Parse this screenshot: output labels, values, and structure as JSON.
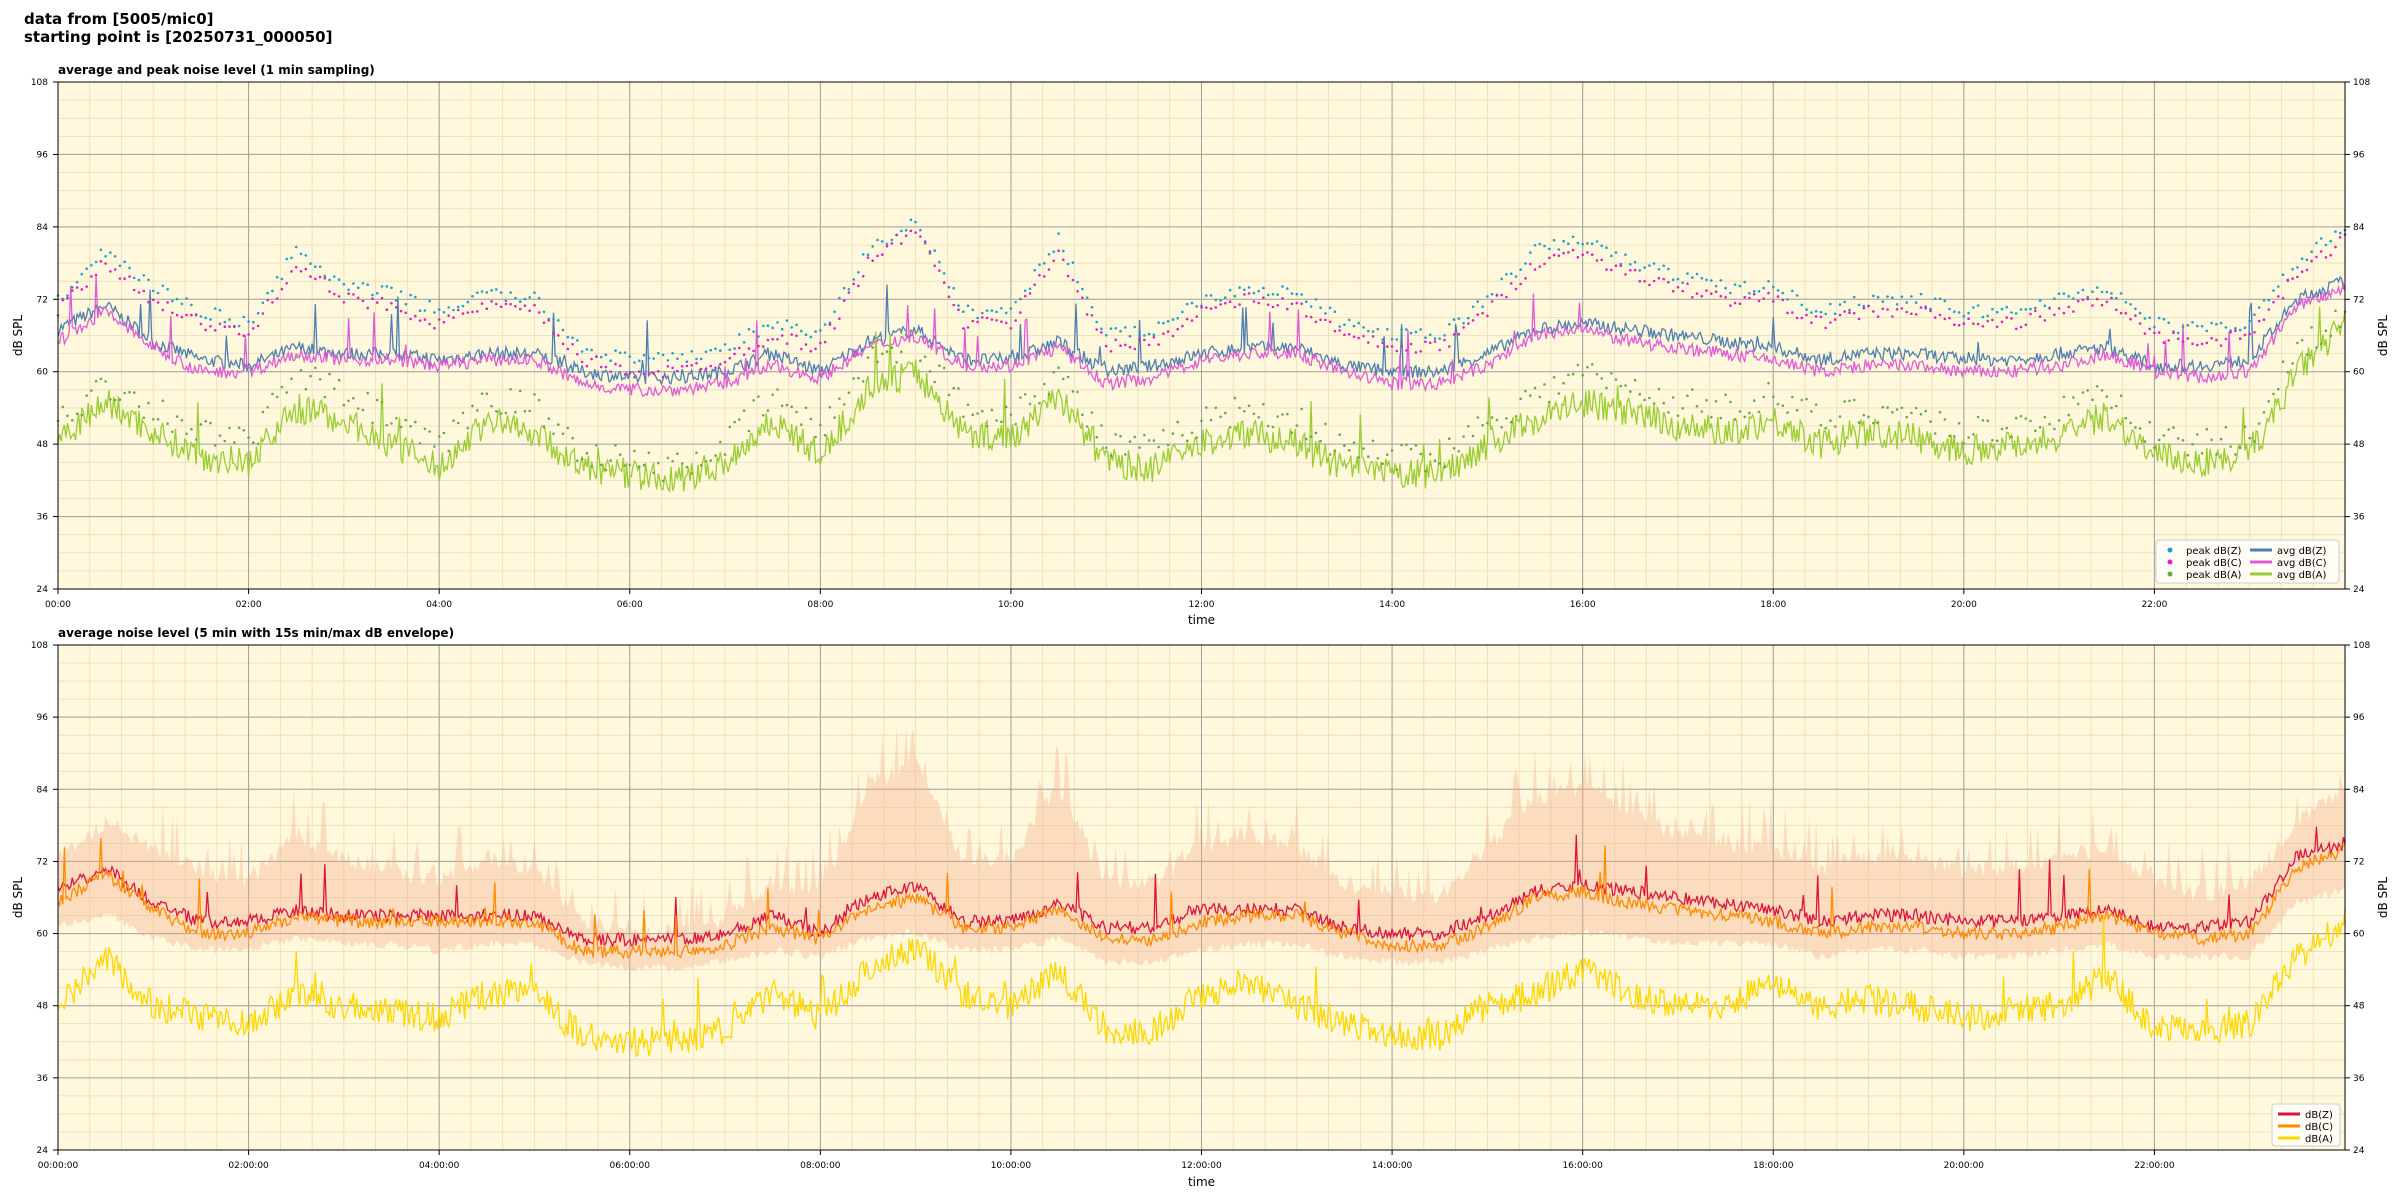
{
  "header": {
    "line1": "data from [5005/mic0]",
    "line2": "starting point is [20250731_000050]"
  },
  "chart_data": [
    {
      "type": "line",
      "title": "average and peak noise level (1 min sampling)",
      "xlabel": "time",
      "ylabel": "dB SPL",
      "ylim": [
        24,
        108
      ],
      "yticks": [
        24,
        36,
        48,
        60,
        72,
        84,
        96,
        108
      ],
      "xlim_hours": [
        0,
        24
      ],
      "xtick_labels": [
        "00:00",
        "02:00",
        "04:00",
        "06:00",
        "08:00",
        "10:00",
        "12:00",
        "14:00",
        "16:00",
        "18:00",
        "20:00",
        "22:00"
      ],
      "grid": true,
      "legend_position": "bottom-right",
      "x_hours": [
        0,
        0.5,
        1,
        1.5,
        2,
        2.5,
        3,
        3.5,
        4,
        4.5,
        5,
        5.5,
        6,
        6.5,
        7,
        7.5,
        8,
        8.5,
        9,
        9.5,
        10,
        10.5,
        11,
        11.5,
        12,
        12.5,
        13,
        13.5,
        14,
        14.5,
        15,
        15.5,
        16,
        16.5,
        17,
        17.5,
        18,
        18.5,
        19,
        19.5,
        20,
        20.5,
        21,
        21.5,
        22,
        22.5,
        23,
        23.5,
        24
      ],
      "series": [
        {
          "name": "avg dB(Z)",
          "style": "line",
          "color": "#4f7fb0",
          "values": [
            67,
            71,
            65,
            62,
            61,
            64,
            63,
            63,
            62,
            63,
            63,
            60,
            59,
            59,
            60,
            63,
            60,
            65,
            67,
            62,
            62,
            65,
            60,
            61,
            63,
            64,
            64,
            61,
            60,
            60,
            63,
            67,
            68,
            67,
            66,
            65,
            64,
            62,
            63,
            63,
            62,
            62,
            63,
            64,
            61,
            61,
            62,
            72,
            75
          ]
        },
        {
          "name": "avg dB(C)",
          "style": "line",
          "color": "#e05ad8",
          "values": [
            65,
            70,
            64,
            60,
            60,
            63,
            62,
            62,
            61,
            62,
            62,
            58,
            57,
            57,
            58,
            61,
            59,
            64,
            66,
            61,
            61,
            64,
            58,
            59,
            62,
            63,
            63,
            60,
            58,
            58,
            61,
            66,
            67,
            65,
            64,
            63,
            62,
            60,
            61,
            61,
            60,
            60,
            61,
            63,
            60,
            59,
            60,
            71,
            74
          ]
        },
        {
          "name": "avg dB(A)",
          "style": "line",
          "color": "#9acd32",
          "values": [
            49,
            55,
            50,
            46,
            45,
            54,
            52,
            48,
            44,
            52,
            50,
            44,
            43,
            42,
            45,
            52,
            46,
            57,
            60,
            50,
            49,
            56,
            45,
            44,
            48,
            50,
            48,
            44,
            43,
            43,
            48,
            52,
            55,
            53,
            51,
            50,
            52,
            48,
            50,
            49,
            47,
            48,
            49,
            53,
            46,
            45,
            46,
            60,
            68
          ]
        },
        {
          "name": "peak dB(Z)",
          "style": "dots",
          "color": "#1f9fd0",
          "values": [
            72,
            80,
            74,
            70,
            68,
            80,
            74,
            73,
            70,
            73,
            72,
            64,
            62,
            62,
            64,
            68,
            66,
            80,
            85,
            70,
            70,
            82,
            66,
            67,
            72,
            74,
            73,
            68,
            66,
            66,
            72,
            80,
            82,
            78,
            76,
            74,
            74,
            70,
            72,
            72,
            70,
            70,
            72,
            74,
            68,
            67,
            68,
            78,
            84
          ]
        },
        {
          "name": "peak dB(C)",
          "style": "dots",
          "color": "#e020c0",
          "values": [
            70,
            78,
            72,
            68,
            66,
            78,
            72,
            71,
            68,
            71,
            70,
            62,
            60,
            60,
            62,
            66,
            64,
            78,
            84,
            68,
            68,
            80,
            64,
            65,
            70,
            72,
            71,
            66,
            64,
            64,
            70,
            78,
            80,
            76,
            74,
            72,
            72,
            68,
            70,
            70,
            68,
            68,
            70,
            72,
            66,
            65,
            66,
            76,
            82
          ]
        },
        {
          "name": "peak dB(A)",
          "style": "dots",
          "color": "#6aa84f",
          "values": [
            52,
            58,
            54,
            50,
            48,
            60,
            56,
            52,
            47,
            56,
            54,
            47,
            45,
            44,
            48,
            56,
            50,
            62,
            65,
            54,
            53,
            60,
            48,
            47,
            52,
            54,
            52,
            47,
            46,
            46,
            52,
            56,
            60,
            57,
            55,
            54,
            56,
            52,
            54,
            53,
            50,
            51,
            53,
            57,
            49,
            48,
            49,
            64,
            70
          ]
        }
      ]
    },
    {
      "type": "line",
      "title": "average noise level (5 min with 15s min/max dB envelope)",
      "xlabel": "time",
      "ylabel": "dB SPL",
      "ylim": [
        24,
        108
      ],
      "yticks": [
        24,
        36,
        48,
        60,
        72,
        84,
        96,
        108
      ],
      "xlim_hours": [
        0,
        24
      ],
      "xtick_labels": [
        "00:00:00",
        "02:00:00",
        "04:00:00",
        "06:00:00",
        "08:00:00",
        "10:00:00",
        "12:00:00",
        "14:00:00",
        "16:00:00",
        "18:00:00",
        "20:00:00",
        "22:00:00"
      ],
      "grid": true,
      "legend_position": "bottom-right",
      "x_hours": [
        0,
        0.5,
        1,
        1.5,
        2,
        2.5,
        3,
        3.5,
        4,
        4.5,
        5,
        5.5,
        6,
        6.5,
        7,
        7.5,
        8,
        8.5,
        9,
        9.5,
        10,
        10.5,
        11,
        11.5,
        12,
        12.5,
        13,
        13.5,
        14,
        14.5,
        15,
        15.5,
        16,
        16.5,
        17,
        17.5,
        18,
        18.5,
        19,
        19.5,
        20,
        20.5,
        21,
        21.5,
        22,
        22.5,
        23,
        23.5,
        24
      ],
      "envelope_max": [
        74,
        80,
        76,
        72,
        70,
        78,
        74,
        72,
        70,
        74,
        72,
        64,
        62,
        62,
        64,
        70,
        68,
        86,
        90,
        74,
        74,
        86,
        70,
        70,
        76,
        78,
        76,
        70,
        68,
        68,
        76,
        84,
        86,
        82,
        78,
        76,
        76,
        72,
        74,
        74,
        72,
        72,
        74,
        76,
        70,
        68,
        70,
        80,
        86
      ],
      "envelope_min": [
        62,
        64,
        60,
        58,
        58,
        60,
        59,
        59,
        58,
        59,
        59,
        56,
        55,
        55,
        56,
        58,
        57,
        60,
        61,
        58,
        58,
        60,
        56,
        56,
        58,
        59,
        59,
        57,
        56,
        56,
        58,
        60,
        61,
        60,
        59,
        59,
        59,
        57,
        58,
        58,
        57,
        57,
        58,
        59,
        57,
        57,
        57,
        66,
        68
      ],
      "series": [
        {
          "name": "dB(Z)",
          "color": "#dc143c",
          "values": [
            67,
            71,
            65,
            62,
            62,
            64,
            63,
            63,
            63,
            63,
            63,
            59,
            59,
            59,
            60,
            63,
            60,
            66,
            68,
            62,
            62,
            65,
            61,
            61,
            64,
            64,
            64,
            61,
            60,
            60,
            63,
            67,
            68,
            67,
            66,
            65,
            64,
            62,
            63,
            63,
            62,
            62,
            63,
            64,
            61,
            61,
            62,
            73,
            75
          ]
        },
        {
          "name": "dB(C)",
          "color": "#ff8c00",
          "values": [
            65,
            70,
            64,
            60,
            60,
            63,
            62,
            62,
            62,
            62,
            62,
            57,
            57,
            57,
            58,
            61,
            59,
            64,
            66,
            61,
            61,
            64,
            59,
            59,
            62,
            63,
            63,
            60,
            58,
            58,
            61,
            66,
            67,
            65,
            64,
            63,
            62,
            60,
            61,
            61,
            60,
            60,
            61,
            63,
            60,
            59,
            60,
            71,
            74
          ]
        },
        {
          "name": "dB(A)",
          "color": "#ffd700",
          "values": [
            48,
            56,
            48,
            46,
            45,
            50,
            48,
            47,
            46,
            50,
            50,
            43,
            42,
            42,
            44,
            50,
            46,
            54,
            58,
            50,
            48,
            54,
            44,
            44,
            50,
            52,
            48,
            45,
            43,
            43,
            48,
            50,
            54,
            50,
            48,
            48,
            52,
            47,
            49,
            48,
            46,
            47,
            48,
            53,
            44,
            44,
            45,
            56,
            62
          ]
        }
      ]
    }
  ]
}
